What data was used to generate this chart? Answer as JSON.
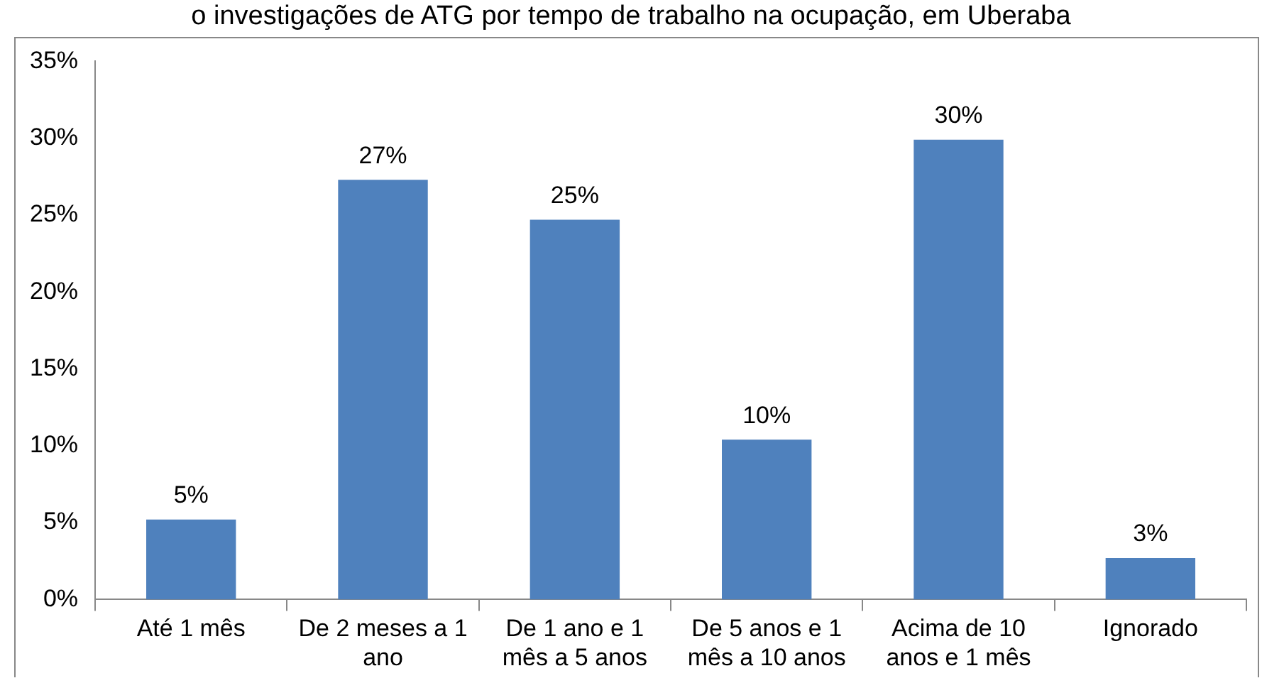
{
  "chart_data": {
    "type": "bar",
    "title": "o investigações de ATG por tempo de trabalho na ocupação, em Uberaba",
    "categories": [
      "Até 1 mês",
      "De 2 meses a 1 ano",
      "De 1 ano e 1 mês a 5 anos",
      "De 5 anos e 1 mês a 10 anos",
      "Acima de 10 anos e 1 mês",
      "Ignorado"
    ],
    "values": [
      5.2,
      27.3,
      24.7,
      10.4,
      29.9,
      2.7
    ],
    "value_labels": [
      "5%",
      "27%",
      "25%",
      "10%",
      "30%",
      "3%"
    ],
    "color": "#4f81bd",
    "ylim": [
      0,
      35
    ],
    "yticks": [
      {
        "value": 0,
        "label": "0%"
      },
      {
        "value": 5,
        "label": "5%"
      },
      {
        "value": 10,
        "label": "10%"
      },
      {
        "value": 15,
        "label": "15%"
      },
      {
        "value": 20,
        "label": "20%"
      },
      {
        "value": 25,
        "label": "25%"
      },
      {
        "value": 30,
        "label": "30%"
      },
      {
        "value": 35,
        "label": "35%"
      }
    ],
    "grid": false,
    "legend": false
  }
}
